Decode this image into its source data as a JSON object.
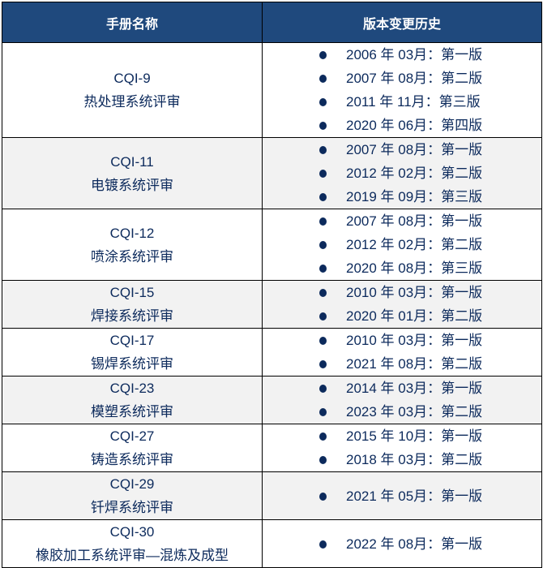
{
  "header": {
    "col1": "手册名称",
    "col2": "版本变更历史"
  },
  "colors": {
    "header_bg": "#1f497d",
    "text": "#0c2a5c",
    "alt_row": "#f2f2f2"
  },
  "bullet_icon": "filled-circle",
  "rows": [
    {
      "code": "CQI-9",
      "name": "热处理系统评审",
      "history": [
        "2006 年 03月：第一版",
        "2007 年 08月：第二版",
        "2011 年 11月：第三版",
        "2020 年 06月：第四版"
      ]
    },
    {
      "code": "CQI-11",
      "name": "电镀系统评审",
      "history": [
        "2007 年 08月：第一版",
        "2012 年 02月：第二版",
        "2019 年 09月：第三版"
      ]
    },
    {
      "code": "CQI-12",
      "name": "喷涂系统评审",
      "history": [
        "2007 年 08月：第一版",
        "2012 年 02月：第二版",
        "2020 年 08月：第三版"
      ]
    },
    {
      "code": "CQI-15",
      "name": "焊接系统评审",
      "history": [
        "2010 年 03月：第一版",
        "2020 年 01月：第二版"
      ]
    },
    {
      "code": "CQI-17",
      "name": "锡焊系统评审",
      "history": [
        "2010 年 03月：第一版",
        "2021 年 08月：第二版"
      ]
    },
    {
      "code": "CQI-23",
      "name": "模塑系统评审",
      "history": [
        "2014 年 03月：第一版",
        "2023 年 03月：第二版"
      ]
    },
    {
      "code": "CQI-27",
      "name": "铸造系统评审",
      "history": [
        "2015 年 10月：第一版",
        "2018 年 03月：第二版"
      ]
    },
    {
      "code": "CQI-29",
      "name": "钎焊系统评审",
      "history": [
        "2021 年 05月：第一版"
      ]
    },
    {
      "code": "CQI-30",
      "name": "橡胶加工系统评审—混炼及成型",
      "history": [
        "2022 年 08月：第一版"
      ]
    }
  ]
}
